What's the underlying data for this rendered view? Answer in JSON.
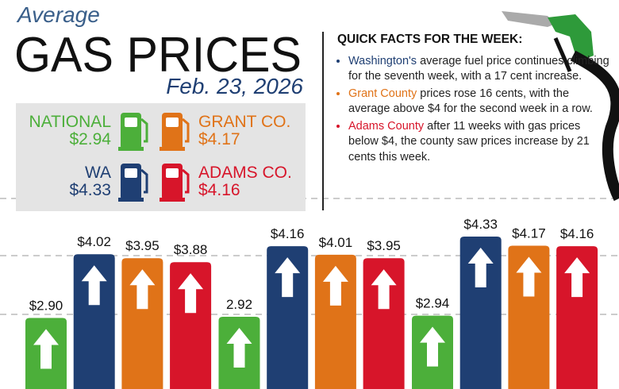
{
  "header": {
    "kicker": "Average",
    "title": "GAS PRICES",
    "date": "Feb. 23, 2026"
  },
  "facts": {
    "title": "QUICK FACTS FOR THE WEEK:",
    "items": [
      {
        "highlight": "Washington's",
        "color": "#1f3f73",
        "text": " average fuel price continues climbing for the seventh week, with a 17 cent increase."
      },
      {
        "highlight": "Grant County",
        "color": "#e07318",
        "text": " prices rose 16 cents, with the average above $4 for the second week in a row."
      },
      {
        "highlight": "Adams County",
        "color": "#d7152a",
        "text": " after 11 weeks with gas prices below $4, the county saw prices increase by 21 cents this week."
      }
    ]
  },
  "chart_data": {
    "type": "bar",
    "categories": [
      null,
      null,
      null
    ],
    "ylim": [
      1.65,
      5
    ],
    "series": [
      {
        "name": "NATIONAL",
        "current": "$2.94",
        "color": "#4caf3a",
        "values": [
          2.9,
          2.92,
          2.94
        ],
        "value_labels": [
          "$2.90",
          "2.92",
          "$2.94"
        ]
      },
      {
        "name": "WA",
        "current": "$4.33",
        "color": "#1f3f73",
        "values": [
          4.02,
          4.16,
          4.33
        ],
        "value_labels": [
          "$4.02",
          "$4.16",
          "$4.33"
        ]
      },
      {
        "name": "GRANT CO.",
        "current": "$4.17",
        "color": "#e07318",
        "values": [
          3.95,
          4.01,
          4.17
        ],
        "value_labels": [
          "$3.95",
          "$4.01",
          "$4.17"
        ]
      },
      {
        "name": "ADAMS CO.",
        "current": "$4.16",
        "color": "#d7152a",
        "values": [
          3.88,
          3.95,
          4.16
        ],
        "value_labels": [
          "$3.88",
          "$3.95",
          "$4.16"
        ]
      }
    ]
  }
}
